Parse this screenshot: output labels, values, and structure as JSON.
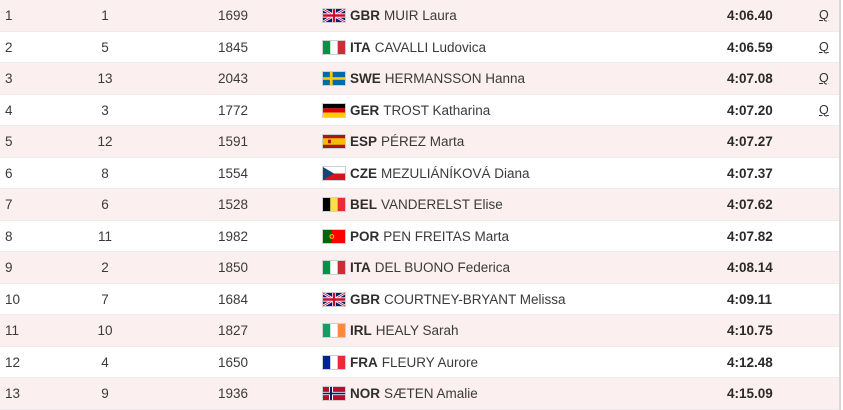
{
  "results": [
    {
      "rank": "1",
      "bib": "1",
      "points": "1699",
      "flag": "gbr-flag-icon",
      "noc": "GBR",
      "athlete": "MUIR Laura",
      "time": "4:06.40",
      "qualifier": "Q"
    },
    {
      "rank": "2",
      "bib": "5",
      "points": "1845",
      "flag": "ita-flag-icon",
      "noc": "ITA",
      "athlete": "CAVALLI Ludovica",
      "time": "4:06.59",
      "qualifier": "Q"
    },
    {
      "rank": "3",
      "bib": "13",
      "points": "2043",
      "flag": "swe-flag-icon",
      "noc": "SWE",
      "athlete": "HERMANSSON Hanna",
      "time": "4:07.08",
      "qualifier": "Q"
    },
    {
      "rank": "4",
      "bib": "3",
      "points": "1772",
      "flag": "ger-flag-icon",
      "noc": "GER",
      "athlete": "TROST Katharina",
      "time": "4:07.20",
      "qualifier": "Q"
    },
    {
      "rank": "5",
      "bib": "12",
      "points": "1591",
      "flag": "esp-flag-icon",
      "noc": "ESP",
      "athlete": "PÉREZ Marta",
      "time": "4:07.27",
      "qualifier": ""
    },
    {
      "rank": "6",
      "bib": "8",
      "points": "1554",
      "flag": "cze-flag-icon",
      "noc": "CZE",
      "athlete": "MEZULIÁNÍKOVÁ Diana",
      "time": "4:07.37",
      "qualifier": ""
    },
    {
      "rank": "7",
      "bib": "6",
      "points": "1528",
      "flag": "bel-flag-icon",
      "noc": "BEL",
      "athlete": "VANDERELST Elise",
      "time": "4:07.62",
      "qualifier": ""
    },
    {
      "rank": "8",
      "bib": "11",
      "points": "1982",
      "flag": "por-flag-icon",
      "noc": "POR",
      "athlete": "PEN FREITAS Marta",
      "time": "4:07.82",
      "qualifier": ""
    },
    {
      "rank": "9",
      "bib": "2",
      "points": "1850",
      "flag": "ita-flag-icon",
      "noc": "ITA",
      "athlete": "DEL BUONO Federica",
      "time": "4:08.14",
      "qualifier": ""
    },
    {
      "rank": "10",
      "bib": "7",
      "points": "1684",
      "flag": "gbr-flag-icon",
      "noc": "GBR",
      "athlete": "COURTNEY-BRYANT Melissa",
      "time": "4:09.11",
      "qualifier": ""
    },
    {
      "rank": "11",
      "bib": "10",
      "points": "1827",
      "flag": "irl-flag-icon",
      "noc": "IRL",
      "athlete": "HEALY Sarah",
      "time": "4:10.75",
      "qualifier": ""
    },
    {
      "rank": "12",
      "bib": "4",
      "points": "1650",
      "flag": "fra-flag-icon",
      "noc": "FRA",
      "athlete": "FLEURY Aurore",
      "time": "4:12.48",
      "qualifier": ""
    },
    {
      "rank": "13",
      "bib": "9",
      "points": "1936",
      "flag": "nor-flag-icon",
      "noc": "NOR",
      "athlete": "SÆTEN Amalie",
      "time": "4:15.09",
      "qualifier": ""
    }
  ],
  "colors": {
    "row_alt": "#fcefef",
    "row_plain": "#ffffff"
  }
}
